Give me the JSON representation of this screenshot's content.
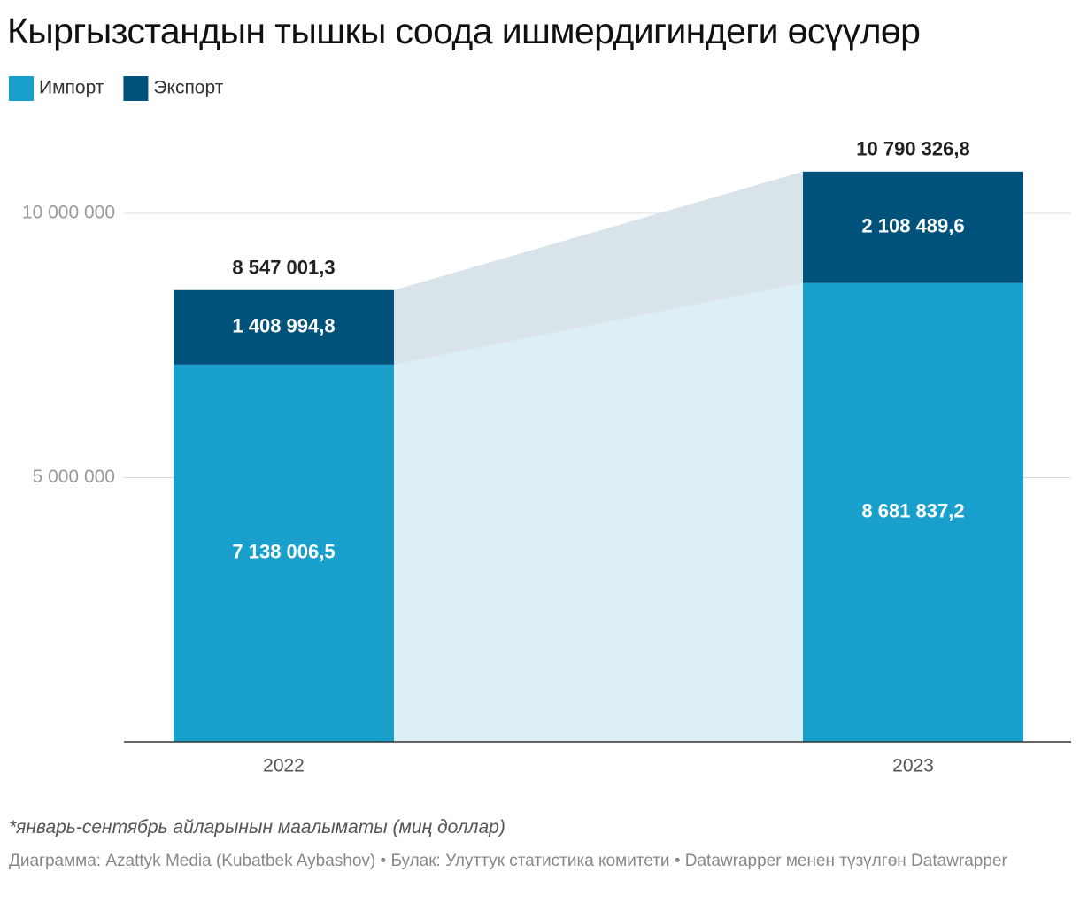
{
  "chart_data": {
    "type": "stacked-bar",
    "title": "Кыргызстандын тышкы соода ишмердигиндеги өсүүлөр",
    "categories": [
      "2022",
      "2023"
    ],
    "series": [
      {
        "name": "Импорт",
        "color": "#199fcb",
        "area_color": "#dceff6",
        "values": [
          7138006.5,
          8681837.2
        ],
        "value_labels": [
          "7 138 006,5",
          "8 681 837,2"
        ]
      },
      {
        "name": "Экспорт",
        "color": "#00527a",
        "area_color": "#d9e3ea",
        "values": [
          1408994.8,
          2108489.6
        ],
        "value_labels": [
          "1 408 994,8",
          "2 108 489,6"
        ]
      }
    ],
    "totals": {
      "values": [
        8547001.3,
        10790326.8
      ],
      "value_labels": [
        "8 547 001,3",
        "10 790 326,8"
      ]
    },
    "ylim": [
      0,
      11000000
    ],
    "yticks": [
      {
        "value": 5000000,
        "label": "5 000 000"
      },
      {
        "value": 10000000,
        "label": "10 000 000"
      }
    ],
    "grid": true,
    "legend": "top-left",
    "note": "*январь-сентябрь айларынын маалыматы (миң доллар)",
    "source": "Диаграмма: Azattyk Media (Kubatbek Aybashov) • Булак: Улуттук статистика комитети • Datawrapper менен түзүлгөн Datawrapper"
  }
}
